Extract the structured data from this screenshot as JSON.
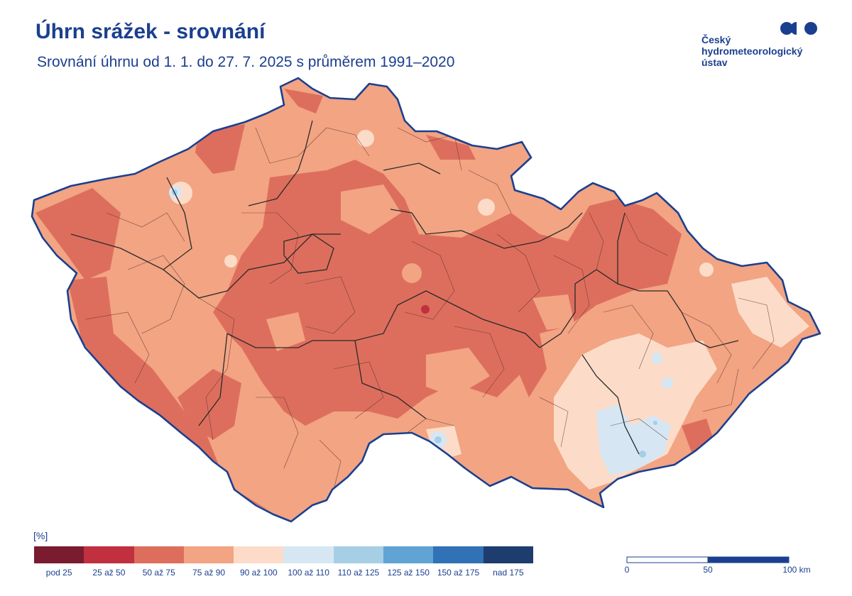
{
  "header": {
    "title": "Úhrn srážek - srovnání",
    "subtitle": "Srovnání úhrnu od 1. 1. do 27. 7. 2025 s průměrem 1991–2020"
  },
  "logo": {
    "lines": [
      "Český",
      "hydrometeorologický",
      "ústav"
    ],
    "color": "#1b3f8f"
  },
  "map": {
    "region": "Česká republika",
    "border_color": "#1b3f8f"
  },
  "legend": {
    "unit": "[%]",
    "classes": [
      {
        "label": "pod 25",
        "color": "#7a1b2f"
      },
      {
        "label": "25 až 50",
        "color": "#c0303f"
      },
      {
        "label": "50 až 75",
        "color": "#dd6e5d"
      },
      {
        "label": "75 až 90",
        "color": "#f2a483"
      },
      {
        "label": "90 až 100",
        "color": "#fcdcc8"
      },
      {
        "label": "100 až 110",
        "color": "#d6e7f3"
      },
      {
        "label": "110 až 125",
        "color": "#a6cfe6"
      },
      {
        "label": "125 až 150",
        "color": "#5fa4d4"
      },
      {
        "label": "150 až 175",
        "color": "#3171b6"
      },
      {
        "label": "nad 175",
        "color": "#1e3d6f"
      }
    ]
  },
  "scale_bar": {
    "ticks": [
      "0",
      "50",
      "100 km"
    ]
  }
}
